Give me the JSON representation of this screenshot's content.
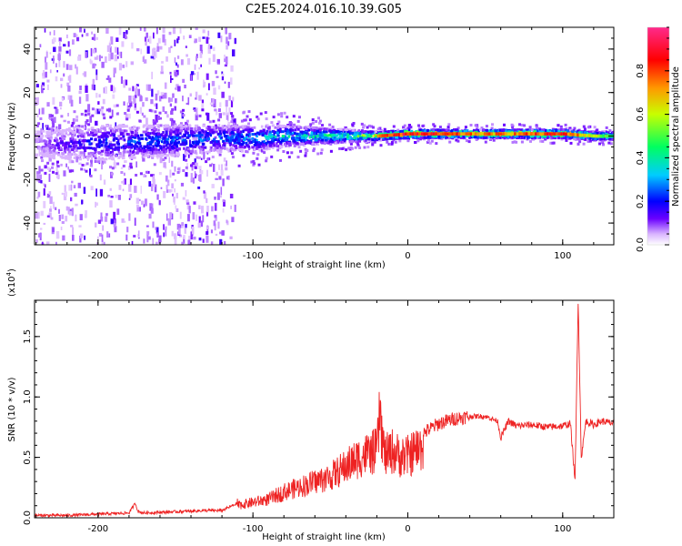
{
  "title": "C2E5.2024.016.10.39.G05",
  "chart_data": [
    {
      "type": "heatmap",
      "xlabel": "Height of straight line (km)",
      "ylabel": "Frequency (Hz)",
      "xlim": [
        -241,
        133
      ],
      "ylim": [
        -50,
        50
      ],
      "x_ticks": [
        -200,
        -100,
        0,
        100
      ],
      "y_ticks": [
        -40,
        -20,
        0,
        20,
        40
      ],
      "x_tick_labels": [
        "-200",
        "-100",
        "0",
        "100"
      ],
      "y_tick_labels": [
        "-40",
        "-20",
        "0",
        "20",
        "40"
      ],
      "colorbar": {
        "label": "Normalized spectral amplitude",
        "range": [
          0,
          1
        ],
        "ticks": [
          0.0,
          0.2,
          0.4,
          0.6,
          0.8
        ],
        "tick_labels": [
          "0.0",
          "0.2",
          "0.4",
          "0.6",
          "0.8"
        ],
        "colormap": "rainbow",
        "colors": [
          "#ffffff",
          "#6a00ff",
          "#0000ff",
          "#00ccff",
          "#00ff60",
          "#c8ff00",
          "#ff9900",
          "#ff0000",
          "#ff2a8c"
        ]
      },
      "band": {
        "x": [
          -241,
          -200,
          -150,
          -120,
          -100,
          -80,
          -60,
          -40,
          -20,
          0,
          20,
          40,
          60,
          80,
          100,
          120,
          133
        ],
        "center_hz": [
          -4,
          -3,
          -2,
          -1,
          -1,
          0,
          0,
          0,
          0,
          1,
          1,
          1,
          1,
          1,
          1,
          0,
          0
        ],
        "halfwidth_hz": [
          6,
          8,
          7,
          6,
          6,
          5,
          4,
          3,
          2,
          2,
          2,
          2,
          2,
          2,
          2,
          2,
          2
        ],
        "amplitude": [
          0.1,
          0.25,
          0.3,
          0.3,
          0.35,
          0.4,
          0.45,
          0.5,
          0.7,
          0.9,
          0.8,
          0.75,
          0.75,
          0.78,
          0.85,
          0.6,
          0.45
        ],
        "background_noise_until_x": -120
      }
    },
    {
      "type": "line",
      "xlabel": "Height of straight line (km)",
      "ylabel": "SNR (10 * v/v)",
      "y_scale_label": "(x10",
      "y_scale_exponent": "4",
      "y_scale_suffix": ")",
      "xlim": [
        -241,
        133
      ],
      "ylim": [
        0,
        1.8
      ],
      "x_ticks": [
        -200,
        -100,
        0,
        100
      ],
      "y_ticks": [
        0.0,
        0.5,
        1.0,
        1.5
      ],
      "x_tick_labels": [
        "-200",
        "-100",
        "0",
        "100"
      ],
      "y_tick_labels": [
        "0.0",
        "0.5",
        "1.0",
        "1.5"
      ],
      "color": "#ee2222",
      "series": [
        {
          "x": [
            -241,
            -220,
            -200,
            -180,
            -176,
            -174,
            -170,
            -150,
            -130,
            -120,
            -110,
            -100,
            -90,
            -80,
            -70,
            -60,
            -50,
            -40,
            -30,
            -20,
            -18,
            -15,
            -10,
            -5,
            0,
            10,
            20,
            30,
            40,
            50,
            58,
            60,
            65,
            70,
            80,
            90,
            100,
            105,
            108,
            110,
            112,
            115,
            120,
            125,
            133
          ],
          "y": [
            0.02,
            0.02,
            0.03,
            0.04,
            0.12,
            0.05,
            0.04,
            0.05,
            0.06,
            0.06,
            0.12,
            0.15,
            0.18,
            0.25,
            0.3,
            0.35,
            0.4,
            0.5,
            0.6,
            0.65,
            1.0,
            0.6,
            0.65,
            0.6,
            0.6,
            0.7,
            0.78,
            0.82,
            0.84,
            0.84,
            0.8,
            0.66,
            0.8,
            0.76,
            0.77,
            0.75,
            0.76,
            0.78,
            0.3,
            1.8,
            0.5,
            0.8,
            0.77,
            0.8,
            0.78
          ]
        }
      ]
    }
  ]
}
